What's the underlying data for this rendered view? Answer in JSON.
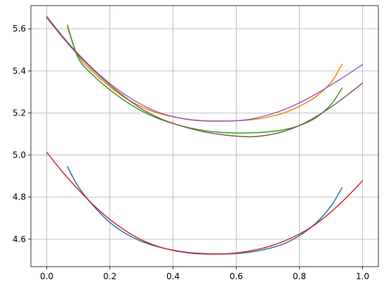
{
  "chart_data": {
    "type": "line",
    "title": "",
    "xlabel": "",
    "ylabel": "",
    "xlim": [
      -0.05,
      1.05
    ],
    "ylim": [
      4.47,
      5.71
    ],
    "xticks": [
      0.0,
      0.2,
      0.4,
      0.6,
      0.8,
      1.0
    ],
    "xtick_labels": [
      "0.0",
      "0.2",
      "0.4",
      "0.6",
      "0.8",
      "1.0"
    ],
    "yticks": [
      4.6,
      4.8,
      5.0,
      5.2,
      5.4,
      5.6
    ],
    "ytick_labels": [
      "4.6",
      "4.8",
      "5.0",
      "5.2",
      "5.4",
      "5.6"
    ],
    "grid": true,
    "series": [
      {
        "color": "#1f77b4",
        "x": [
          0.066,
          0.1,
          0.15,
          0.2,
          0.25,
          0.3,
          0.35,
          0.4,
          0.45,
          0.5,
          0.55,
          0.6,
          0.65,
          0.7,
          0.75,
          0.8,
          0.85,
          0.9,
          0.935
        ],
        "y": [
          4.945,
          4.85,
          4.755,
          4.68,
          4.627,
          4.59,
          4.565,
          4.548,
          4.537,
          4.532,
          4.53,
          4.532,
          4.54,
          4.555,
          4.578,
          4.617,
          4.673,
          4.758,
          4.845
        ]
      },
      {
        "color": "#ff7f0e",
        "x": [
          0.066,
          0.1,
          0.15,
          0.2,
          0.25,
          0.3,
          0.35,
          0.4,
          0.45,
          0.5,
          0.55,
          0.6,
          0.65,
          0.7,
          0.75,
          0.8,
          0.85,
          0.9,
          0.935
        ],
        "y": [
          5.605,
          5.47,
          5.39,
          5.325,
          5.27,
          5.23,
          5.2,
          5.182,
          5.17,
          5.163,
          5.162,
          5.163,
          5.168,
          5.18,
          5.2,
          5.232,
          5.275,
          5.345,
          5.432
        ]
      },
      {
        "color": "#2ca02c",
        "x": [
          0.066,
          0.1,
          0.15,
          0.2,
          0.25,
          0.3,
          0.35,
          0.4,
          0.45,
          0.5,
          0.55,
          0.6,
          0.65,
          0.7,
          0.75,
          0.8,
          0.85,
          0.9,
          0.935
        ],
        "y": [
          5.617,
          5.46,
          5.375,
          5.31,
          5.255,
          5.21,
          5.175,
          5.15,
          5.13,
          5.116,
          5.108,
          5.105,
          5.106,
          5.11,
          5.12,
          5.14,
          5.175,
          5.24,
          5.318
        ]
      },
      {
        "color": "#d62728",
        "x": [
          0.0,
          0.05,
          0.1,
          0.15,
          0.2,
          0.25,
          0.3,
          0.35,
          0.4,
          0.45,
          0.5,
          0.55,
          0.6,
          0.65,
          0.7,
          0.75,
          0.8,
          0.85,
          0.9,
          0.95,
          1.0
        ],
        "y": [
          5.013,
          4.92,
          4.836,
          4.76,
          4.694,
          4.64,
          4.597,
          4.567,
          4.547,
          4.535,
          4.53,
          4.53,
          4.535,
          4.546,
          4.564,
          4.59,
          4.625,
          4.67,
          4.73,
          4.8,
          4.878
        ]
      },
      {
        "color": "#9467bd",
        "x": [
          0.0,
          0.05,
          0.1,
          0.15,
          0.2,
          0.25,
          0.3,
          0.35,
          0.4,
          0.45,
          0.5,
          0.55,
          0.6,
          0.65,
          0.7,
          0.75,
          0.8,
          0.85,
          0.9,
          0.95,
          1.0
        ],
        "y": [
          5.66,
          5.565,
          5.48,
          5.405,
          5.34,
          5.285,
          5.24,
          5.205,
          5.183,
          5.168,
          5.162,
          5.161,
          5.163,
          5.172,
          5.19,
          5.215,
          5.248,
          5.288,
          5.333,
          5.38,
          5.43
        ]
      },
      {
        "color": "#8c564b",
        "x": [
          0.0,
          0.05,
          0.1,
          0.15,
          0.2,
          0.25,
          0.3,
          0.35,
          0.4,
          0.45,
          0.5,
          0.55,
          0.6,
          0.65,
          0.7,
          0.75,
          0.8,
          0.85,
          0.9,
          0.95,
          1.0
        ],
        "y": [
          5.653,
          5.56,
          5.475,
          5.4,
          5.333,
          5.273,
          5.22,
          5.18,
          5.15,
          5.128,
          5.11,
          5.098,
          5.09,
          5.087,
          5.095,
          5.112,
          5.14,
          5.18,
          5.228,
          5.283,
          5.342
        ]
      }
    ]
  }
}
